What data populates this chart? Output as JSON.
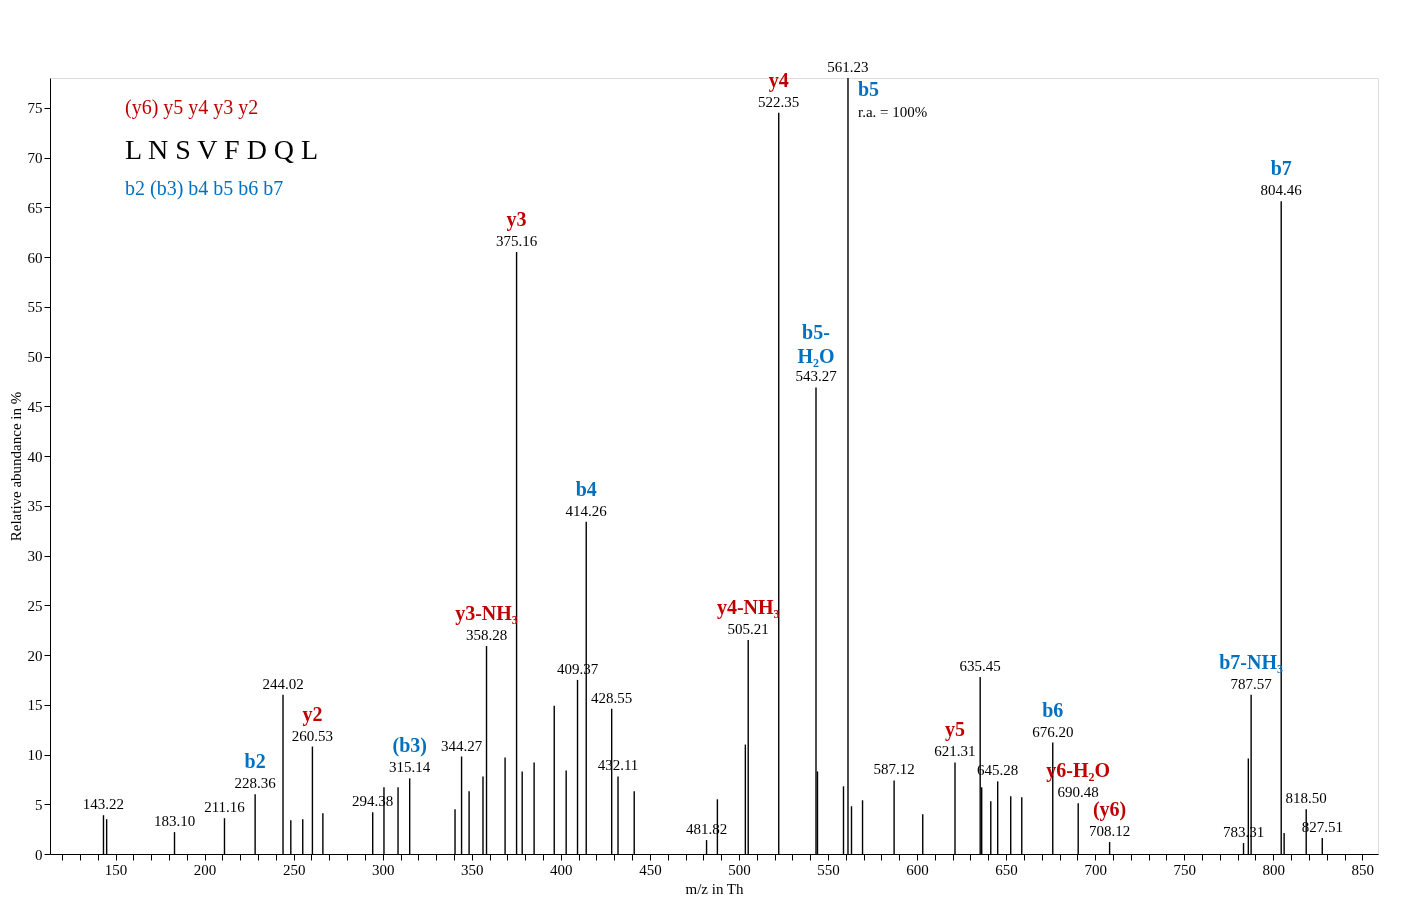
{
  "chart_data": {
    "type": "bar",
    "xlabel": "m/z in Th",
    "ylabel": "Relative abundance in %",
    "x": [
      143.22,
      145.0,
      183.1,
      211.16,
      228.36,
      244.02,
      248.4,
      255.1,
      260.53,
      266.4,
      294.38,
      300.7,
      308.6,
      315.14,
      340.6,
      344.27,
      348.5,
      356.3,
      358.28,
      368.7,
      375.16,
      378.3,
      385.0,
      396.3,
      403.0,
      409.37,
      414.26,
      428.55,
      432.11,
      441.2,
      481.82,
      487.9,
      503.6,
      505.21,
      522.35,
      543.27,
      544.1,
      558.7,
      563.2,
      569.4,
      587.12,
      603.2,
      621.31,
      635.45,
      636.3,
      641.4,
      645.28,
      652.6,
      658.8,
      676.2,
      690.48,
      708.12,
      783.31,
      786.0,
      787.57,
      804.46,
      806.1,
      818.5,
      827.51
    ],
    "values": [
      3.9,
      3.5,
      2.2,
      3.6,
      6.0,
      16.0,
      3.4,
      3.5,
      10.8,
      4.1,
      4.2,
      6.7,
      6.7,
      7.6,
      4.5,
      9.8,
      6.3,
      7.8,
      20.9,
      9.7,
      60.5,
      8.3,
      9.2,
      14.9,
      8.4,
      17.5,
      33.4,
      14.6,
      7.8,
      6.3,
      1.4,
      5.5,
      11.0,
      21.5,
      74.5,
      46.9,
      8.3,
      6.8,
      4.8,
      5.4,
      7.4,
      4.0,
      9.2,
      17.8,
      6.7,
      5.3,
      7.3,
      5.8,
      5.7,
      11.2,
      5.1,
      1.2,
      1.1,
      9.6,
      16.0,
      65.6,
      2.1,
      4.5,
      1.6
    ],
    "color": "#000000",
    "xlim": [
      116,
      856
    ],
    "xticks": [
      {
        "value": 120,
        "label": null
      },
      {
        "value": 130,
        "label": null
      },
      {
        "value": 140,
        "label": null
      },
      150,
      {
        "value": 160,
        "label": null
      },
      {
        "value": 170,
        "label": null
      },
      {
        "value": 180,
        "label": null
      },
      {
        "value": 190,
        "label": null
      },
      200,
      {
        "value": 210,
        "label": null
      },
      {
        "value": 220,
        "label": null
      },
      {
        "value": 230,
        "label": null
      },
      {
        "value": 240,
        "label": null
      },
      250,
      {
        "value": 260,
        "label": null
      },
      {
        "value": 270,
        "label": null
      },
      {
        "value": 280,
        "label": null
      },
      {
        "value": 290,
        "label": null
      },
      300,
      {
        "value": 310,
        "label": null
      },
      {
        "value": 320,
        "label": null
      },
      {
        "value": 330,
        "label": null
      },
      {
        "value": 340,
        "label": null
      },
      350,
      {
        "value": 360,
        "label": null
      },
      {
        "value": 370,
        "label": null
      },
      {
        "value": 380,
        "label": null
      },
      {
        "value": 390,
        "label": null
      },
      400,
      {
        "value": 410,
        "label": null
      },
      {
        "value": 420,
        "label": null
      },
      {
        "value": 430,
        "label": null
      },
      {
        "value": 440,
        "label": null
      },
      450,
      {
        "value": 460,
        "label": null
      },
      {
        "value": 470,
        "label": null
      },
      {
        "value": 480,
        "label": null
      },
      {
        "value": 490,
        "label": null
      },
      500,
      {
        "value": 510,
        "label": null
      },
      {
        "value": 520,
        "label": null
      },
      {
        "value": 530,
        "label": null
      },
      {
        "value": 540,
        "label": null
      },
      550,
      {
        "value": 560,
        "label": null
      },
      {
        "value": 570,
        "label": null
      },
      {
        "value": 580,
        "label": null
      },
      {
        "value": 590,
        "label": null
      },
      600,
      {
        "value": 610,
        "label": null
      },
      {
        "value": 620,
        "label": null
      },
      {
        "value": 630,
        "label": null
      },
      {
        "value": 640,
        "label": null
      },
      650,
      {
        "value": 660,
        "label": null
      },
      {
        "value": 670,
        "label": null
      },
      {
        "value": 680,
        "label": null
      },
      {
        "value": 690,
        "label": null
      },
      700,
      {
        "value": 710,
        "label": null
      },
      {
        "value": 720,
        "label": null
      },
      {
        "value": 730,
        "label": null
      },
      {
        "value": 740,
        "label": null
      },
      750,
      {
        "value": 760,
        "label": null
      },
      {
        "value": 770,
        "label": null
      },
      {
        "value": 780,
        "label": null
      },
      {
        "value": 790,
        "label": null
      },
      800,
      {
        "value": 810,
        "label": null
      },
      {
        "value": 820,
        "label": null
      },
      {
        "value": 830,
        "label": null
      },
      {
        "value": 840,
        "label": null
      },
      850
    ],
    "ylim": [
      0,
      78
    ],
    "yticks": [
      0,
      5,
      10,
      15,
      20,
      25,
      30,
      35,
      40,
      45,
      50,
      55,
      60,
      65,
      70,
      75
    ],
    "ref_lines": [
      {
        "axis": "x",
        "value": 561.23,
        "label": "561.23",
        "color": "#000000"
      }
    ],
    "annotations": [
      "(y6)  y5   y4   y3   y2",
      "L  N  S  V  F  D  Q  L",
      "b2 (b3) b4  b5   b6  b7",
      "b5",
      "r.a. = 100%",
      {
        "text": "143.22",
        "x": 143.22,
        "y": 3.9
      },
      {
        "text": "183.10",
        "x": 183.1,
        "y": 2.2
      },
      {
        "text": "211.16",
        "x": 211.16,
        "y": 3.6
      },
      {
        "text": "228.36",
        "x": 228.36,
        "y": 6.0
      },
      {
        "text": "244.02",
        "x": 244.02,
        "y": 16.0
      },
      {
        "text": "260.53",
        "x": 260.53,
        "y": 10.8
      },
      {
        "text": "294.38",
        "x": 294.38,
        "y": 4.2
      },
      {
        "text": "315.14",
        "x": 315.14,
        "y": 7.6
      },
      {
        "text": "344.27",
        "x": 344.27,
        "y": 9.8
      },
      {
        "text": "358.28",
        "x": 358.28,
        "y": 20.9
      },
      {
        "text": "375.16",
        "x": 375.16,
        "y": 60.5
      },
      {
        "text": "409.37",
        "x": 409.37,
        "y": 17.5
      },
      {
        "text": "414.26",
        "x": 414.26,
        "y": 33.4
      },
      {
        "text": "428.55",
        "x": 428.55,
        "y": 14.6
      },
      {
        "text": "432.11",
        "x": 432.11,
        "y": 7.8
      },
      {
        "text": "481.82",
        "x": 481.82,
        "y": 1.4
      },
      {
        "text": "505.21",
        "x": 505.21,
        "y": 21.5
      },
      {
        "text": "522.35",
        "x": 522.35,
        "y": 74.5
      },
      {
        "text": "543.27",
        "x": 543.27,
        "y": 46.9
      },
      {
        "text": "587.12",
        "x": 587.12,
        "y": 7.4
      },
      {
        "text": "621.31",
        "x": 621.31,
        "y": 9.2
      },
      {
        "text": "635.45",
        "x": 635.45,
        "y": 17.8
      },
      {
        "text": "645.28",
        "x": 645.28,
        "y": 7.3
      },
      {
        "text": "676.20",
        "x": 676.2,
        "y": 11.2
      },
      {
        "text": "690.48",
        "x": 690.48,
        "y": 5.1
      },
      {
        "text": "708.12",
        "x": 708.12,
        "y": 1.2
      },
      {
        "text": "783.31",
        "x": 783.31,
        "y": 1.1
      },
      {
        "text": "787.57",
        "x": 787.57,
        "y": 16.0
      },
      {
        "text": "804.46",
        "x": 804.46,
        "y": 65.6
      },
      {
        "text": "818.50",
        "x": 818.5,
        "y": 4.5
      },
      {
        "text": "827.51",
        "x": 827.51,
        "y": 1.6
      },
      {
        "text": "b2",
        "x": 228.36,
        "y": 6.0
      },
      {
        "text": "y2",
        "x": 260.53,
        "y": 10.8
      },
      {
        "text": "(b3)",
        "x": 315.14,
        "y": 7.6
      },
      {
        "text": "y3-NH₃",
        "x": 358.28,
        "y": 20.9
      },
      {
        "text": "y3",
        "x": 375.16,
        "y": 60.5
      },
      {
        "text": "b4",
        "x": 414.26,
        "y": 33.4
      },
      {
        "text": "y4-NH₃",
        "x": 505.21,
        "y": 21.5
      },
      {
        "text": "y4",
        "x": 522.35,
        "y": 74.5
      },
      {
        "text": "b5-\nH₂O",
        "x": 543.27,
        "y": 46.9
      },
      {
        "text": "y5",
        "x": 621.31,
        "y": 9.2
      },
      {
        "text": "b6",
        "x": 676.2,
        "y": 11.2
      },
      {
        "text": "y6-H₂O",
        "x": 690.48,
        "y": 5.1
      },
      {
        "text": "(y6)",
        "x": 708.12,
        "y": 1.2
      },
      {
        "text": "b7-NH₃",
        "x": 787.57,
        "y": 16.0
      },
      {
        "text": "b7",
        "x": 804.46,
        "y": 65.6
      }
    ]
  }
}
